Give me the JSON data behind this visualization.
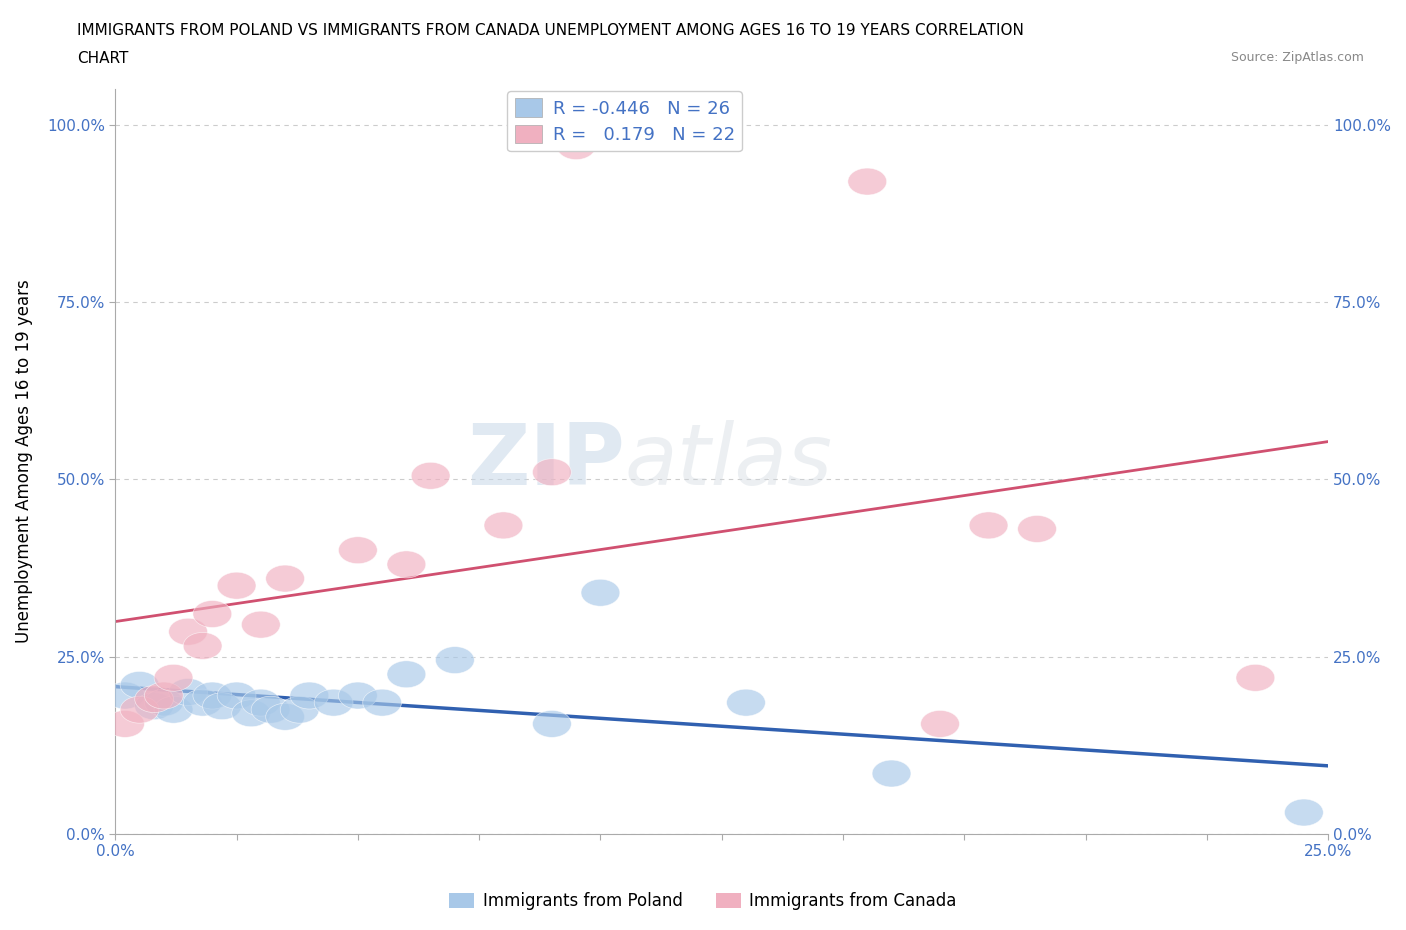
{
  "title_line1": "IMMIGRANTS FROM POLAND VS IMMIGRANTS FROM CANADA UNEMPLOYMENT AMONG AGES 16 TO 19 YEARS CORRELATION",
  "title_line2": "CHART",
  "source_text": "Source: ZipAtlas.com",
  "ylabel": "Unemployment Among Ages 16 to 19 years",
  "xlabel": "",
  "xlim": [
    0.0,
    0.25
  ],
  "ylim": [
    0.0,
    1.05
  ],
  "yticks": [
    0.0,
    0.25,
    0.5,
    0.75,
    1.0
  ],
  "ytick_labels": [
    "0.0%",
    "25.0%",
    "50.0%",
    "75.0%",
    "100.0%"
  ],
  "xticks": [
    0.0,
    0.025,
    0.05,
    0.075,
    0.1,
    0.125,
    0.15,
    0.175,
    0.2,
    0.225,
    0.25
  ],
  "xtick_labels": [
    "0.0%",
    "",
    "",
    "",
    "",
    "",
    "",
    "",
    "",
    "",
    "25.0%"
  ],
  "poland_color": "#a8c8e8",
  "canada_color": "#f0b0c0",
  "poland_line_color": "#3060b0",
  "canada_line_color": "#d05070",
  "poland_R": -0.446,
  "poland_N": 26,
  "canada_R": 0.179,
  "canada_N": 22,
  "legend_label_poland": "Immigrants from Poland",
  "legend_label_canada": "Immigrants from Canada",
  "watermark_zip": "ZIP",
  "watermark_atlas": "atlas",
  "background_color": "#ffffff",
  "grid_color": "#cccccc",
  "poland_points_x": [
    0.002,
    0.005,
    0.008,
    0.01,
    0.012,
    0.015,
    0.018,
    0.02,
    0.022,
    0.025,
    0.028,
    0.03,
    0.032,
    0.035,
    0.038,
    0.04,
    0.045,
    0.05,
    0.055,
    0.06,
    0.07,
    0.09,
    0.1,
    0.13,
    0.16,
    0.245
  ],
  "poland_points_y": [
    0.195,
    0.21,
    0.18,
    0.185,
    0.175,
    0.2,
    0.185,
    0.195,
    0.18,
    0.195,
    0.17,
    0.185,
    0.175,
    0.165,
    0.175,
    0.195,
    0.185,
    0.195,
    0.185,
    0.225,
    0.245,
    0.155,
    0.34,
    0.185,
    0.085,
    0.03
  ],
  "canada_points_x": [
    0.002,
    0.005,
    0.008,
    0.01,
    0.012,
    0.015,
    0.018,
    0.02,
    0.025,
    0.03,
    0.035,
    0.05,
    0.06,
    0.065,
    0.08,
    0.09,
    0.095,
    0.155,
    0.19,
    0.235,
    0.18,
    0.17
  ],
  "canada_points_y": [
    0.155,
    0.175,
    0.19,
    0.195,
    0.22,
    0.285,
    0.265,
    0.31,
    0.35,
    0.295,
    0.36,
    0.4,
    0.38,
    0.505,
    0.435,
    0.51,
    0.97,
    0.92,
    0.43,
    0.22,
    0.435,
    0.155
  ]
}
